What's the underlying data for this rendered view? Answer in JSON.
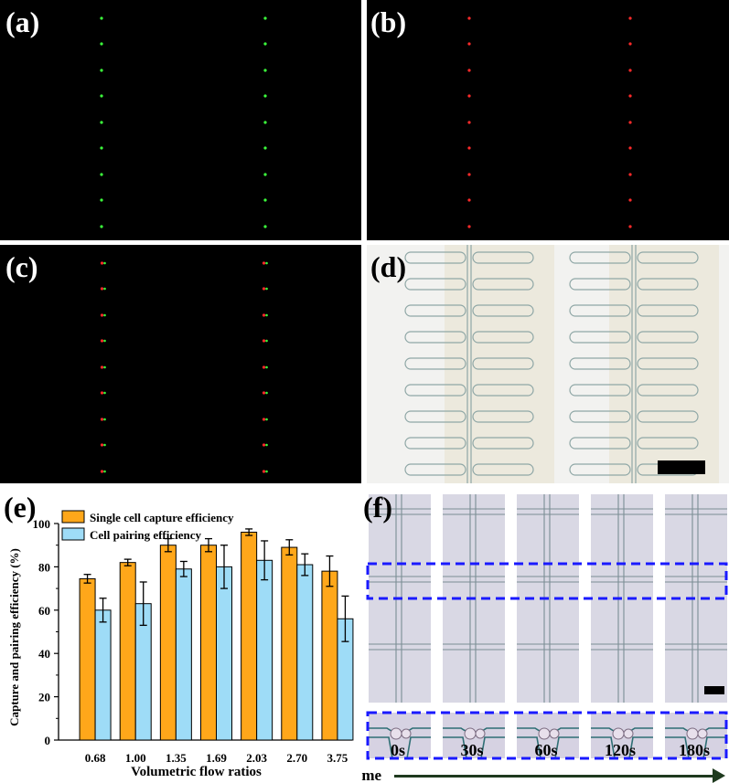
{
  "panels": {
    "a": {
      "label": "(a)"
    },
    "b": {
      "label": "(b)"
    },
    "c": {
      "label": "(c)"
    },
    "d": {
      "label": "(d)"
    },
    "e": {
      "label": "(e)"
    },
    "f": {
      "label": "(f)"
    }
  },
  "colors": {
    "orange": "#FFA71A",
    "blue": "#9EDCF7",
    "green_cell": "#3cff3c",
    "red_cell": "#ff2a2a",
    "dashed_box": "#1a1aff",
    "arrow": "#1e3a1e"
  },
  "chart_data": {
    "type": "bar",
    "xlabel": "Volumetric flow ratios",
    "ylabel": "Capture and pairing efficiency (%)",
    "categories": [
      "0.68",
      "1.00",
      "1.35",
      "1.69",
      "2.03",
      "2.70",
      "3.75"
    ],
    "ylim": [
      0,
      100
    ],
    "yticks": [
      "0",
      "20",
      "40",
      "60",
      "80",
      "100"
    ],
    "legend_position": "top-left",
    "series": [
      {
        "name": "Single cell capture efficiency",
        "values": [
          74.5,
          82,
          90,
          90,
          96,
          89,
          78
        ],
        "errors": [
          2,
          1.5,
          3,
          3,
          1.5,
          3.5,
          7
        ],
        "color": "#FFA71A"
      },
      {
        "name": "Cell pairing efficiency",
        "values": [
          60,
          63,
          79,
          80,
          83,
          81,
          56
        ],
        "errors": [
          5.5,
          10,
          3.5,
          10,
          9,
          5,
          10.5
        ],
        "color": "#9EDCF7"
      }
    ]
  },
  "timeline": {
    "label": "time",
    "points": [
      "0s",
      "30s",
      "60s",
      "120s",
      "180s"
    ]
  }
}
